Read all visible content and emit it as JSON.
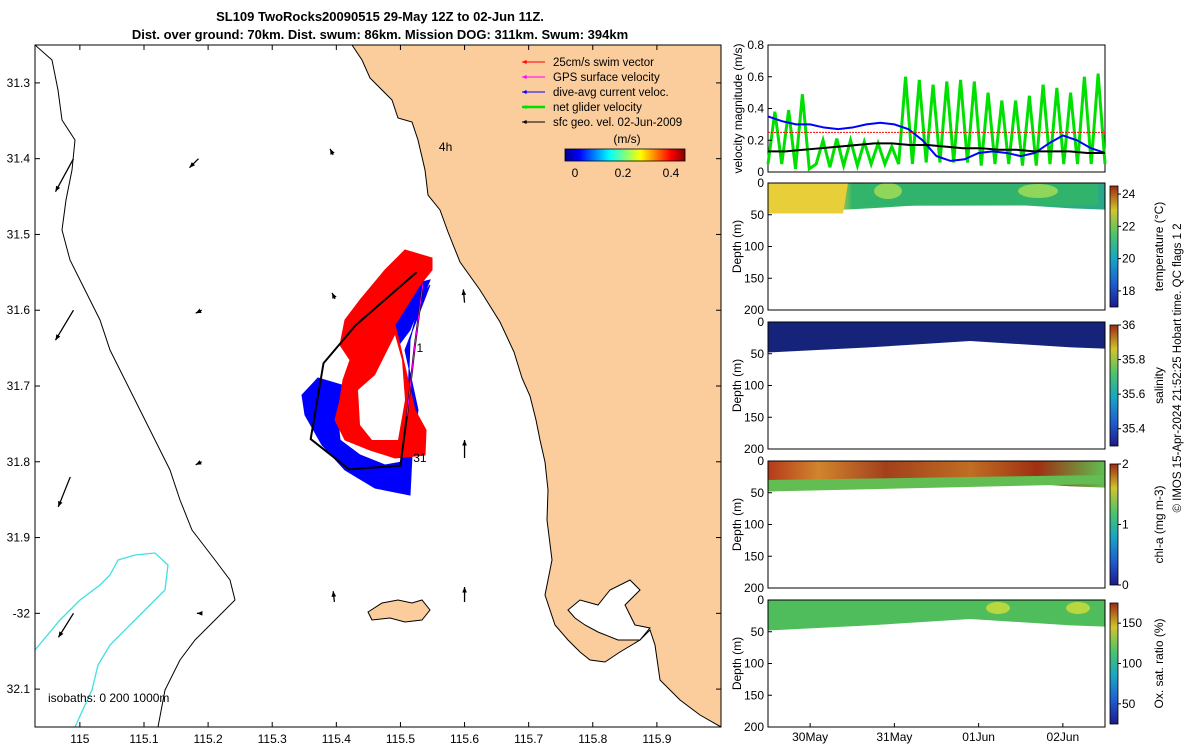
{
  "title_line1": "SL109 TwoRocks20090515 29-May 12Z to 02-Jun 11Z.",
  "title_line2": "Dist. over ground: 70km. Dist. swum: 86km. Mission DOG: 311km. Swum: 394km",
  "copyright": "© IMOS 15-Apr-2024 21:52:25 Hobart time. QC flags 1  2",
  "colors": {
    "land": "#fbcc9c",
    "coast_line": "#000000",
    "isobath": "#40e0e0",
    "swim": "#ff0000",
    "gps": "#ff00ff",
    "current": "#0000ff",
    "net": "#00e000",
    "geo": "#000000"
  },
  "chart_data": [
    {
      "type": "map",
      "xlim": [
        114.93,
        116.0
      ],
      "ylim": [
        -32.15,
        -31.25
      ],
      "x_ticks": [
        115,
        115.1,
        115.2,
        115.3,
        115.4,
        115.5,
        115.6,
        115.7,
        115.8,
        115.9
      ],
      "x_tick_labels": [
        "115",
        "115.1",
        "115.2",
        "115.3",
        "115.4",
        "115.5",
        "115.6",
        "115.7",
        "115.8",
        "115.9"
      ],
      "y_ticks": [
        -31.3,
        -31.4,
        -31.5,
        -31.6,
        -31.7,
        -31.8,
        -31.9,
        -32,
        -32.1
      ],
      "y_tick_labels": [
        "31.3",
        "31.4",
        "31.5",
        "31.6",
        "31.7",
        "31.8",
        "31.9",
        "-32",
        "32.1"
      ],
      "legend": {
        "placement": "top-right",
        "items": [
          {
            "label": "25cm/s swim vector",
            "color_key": "swim"
          },
          {
            "label": "GPS surface velocity",
            "color_key": "gps"
          },
          {
            "label": "dive-avg current veloc.",
            "color_key": "current"
          },
          {
            "label": "net glider velocity",
            "color_key": "net"
          },
          {
            "label": "sfc geo. vel. 02-Jun-2009",
            "color_key": "geo"
          }
        ]
      },
      "colorbar": {
        "title": "(m/s)",
        "ticks": [
          0,
          0.2,
          0.4
        ],
        "tick_labels": [
          "0",
          "0.2",
          "0.4"
        ],
        "range": [
          0,
          0.5
        ],
        "colormap": "jet"
      },
      "annotations": [
        {
          "text": "4h",
          "lon": 115.56,
          "lat": -31.39
        },
        {
          "text": "1",
          "lon": 115.525,
          "lat": -31.655
        },
        {
          "text": "31",
          "lon": 115.52,
          "lat": -31.8
        }
      ],
      "isobath_label": "isobaths: 0   200   1000m",
      "track": [
        [
          115.525,
          -31.55
        ],
        [
          115.43,
          -31.62
        ],
        [
          115.38,
          -31.67
        ],
        [
          115.36,
          -31.77
        ],
        [
          115.42,
          -31.81
        ],
        [
          115.5,
          -31.805
        ],
        [
          115.51,
          -31.74
        ],
        [
          115.522,
          -31.65
        ],
        [
          115.535,
          -31.565
        ]
      ],
      "geo_vectors": [
        {
          "lon": 114.99,
          "lat": -31.4,
          "u": -0.3,
          "v": -0.55
        },
        {
          "lon": 114.99,
          "lat": -31.6,
          "u": -0.3,
          "v": -0.5
        },
        {
          "lon": 114.985,
          "lat": -31.82,
          "u": -0.2,
          "v": -0.5
        },
        {
          "lon": 114.99,
          "lat": -32.0,
          "u": -0.25,
          "v": -0.4
        },
        {
          "lon": 115.185,
          "lat": -31.4,
          "u": -0.15,
          "v": -0.15
        },
        {
          "lon": 115.19,
          "lat": -31.6,
          "u": -0.1,
          "v": -0.05
        },
        {
          "lon": 115.19,
          "lat": -31.8,
          "u": -0.1,
          "v": -0.05
        },
        {
          "lon": 115.19,
          "lat": -32.0,
          "u": -0.08,
          "v": 0.0
        },
        {
          "lon": 115.395,
          "lat": -31.395,
          "u": -0.05,
          "v": 0.1
        },
        {
          "lon": 115.398,
          "lat": -31.585,
          "u": -0.05,
          "v": 0.1
        },
        {
          "lon": 115.397,
          "lat": -31.985,
          "u": -0.02,
          "v": 0.18
        },
        {
          "lon": 115.6,
          "lat": -31.59,
          "u": -0.02,
          "v": 0.22
        },
        {
          "lon": 115.6,
          "lat": -31.795,
          "u": 0.0,
          "v": 0.3
        },
        {
          "lon": 115.6,
          "lat": -31.985,
          "u": 0.0,
          "v": 0.25
        }
      ]
    },
    {
      "type": "line",
      "ylabel": "velocity magnitude (m/s)",
      "ylim": [
        0,
        0.8
      ],
      "y_ticks": [
        0,
        0.2,
        0.4,
        0.6,
        0.8
      ],
      "x_tick_labels": [],
      "series": [
        {
          "color_key": "net",
          "note_values": "oscillating dive cycles",
          "y": [
            0.05,
            0.38,
            0.05,
            0.39,
            0.02,
            0.49,
            0.02,
            0.05,
            0.2,
            0.03,
            0.21,
            0.04,
            0.2,
            0.04,
            0.19,
            0.05,
            0.18,
            0.05,
            0.16,
            0.05,
            0.6,
            0.05,
            0.58,
            0.06,
            0.55,
            0.06,
            0.57,
            0.06,
            0.58,
            0.06,
            0.57,
            0.04,
            0.5,
            0.05,
            0.45,
            0.05,
            0.45,
            0.04,
            0.48,
            0.04,
            0.55,
            0.05,
            0.53,
            0.05,
            0.5,
            0.05,
            0.6,
            0.05,
            0.62,
            0.05
          ]
        },
        {
          "color_key": "current",
          "y": [
            0.35,
            0.32,
            0.3,
            0.3,
            0.28,
            0.27,
            0.28,
            0.3,
            0.31,
            0.3,
            0.27,
            0.2,
            0.1,
            0.07,
            0.08,
            0.12,
            0.13,
            0.12,
            0.1,
            0.12,
            0.18,
            0.23,
            0.2,
            0.15,
            0.12
          ]
        },
        {
          "color_key": "geo",
          "y": [
            0.13,
            0.13,
            0.14,
            0.15,
            0.16,
            0.17,
            0.18,
            0.18,
            0.17,
            0.17,
            0.16,
            0.15,
            0.15,
            0.14,
            0.14,
            0.13,
            0.13,
            0.13,
            0.12,
            0.12
          ]
        },
        {
          "color_key": "swim",
          "y_const": 0.25
        }
      ]
    },
    {
      "type": "heatmap",
      "ylabel": "Depth (m)",
      "clabel": "temperature (°C)",
      "ylim": [
        200,
        0
      ],
      "y_ticks": [
        0,
        50,
        100,
        150,
        200
      ],
      "clim": [
        17,
        24.5
      ],
      "c_ticks": [
        18,
        20,
        22,
        24
      ],
      "c_tick_labels": [
        "18",
        "20",
        "22",
        "24"
      ],
      "x_tick_labels": []
    },
    {
      "type": "heatmap",
      "ylabel": "Depth (m)",
      "clabel": "salinity",
      "ylim": [
        200,
        0
      ],
      "y_ticks": [
        0,
        50,
        100,
        150,
        200
      ],
      "clim": [
        35.3,
        36
      ],
      "c_ticks": [
        35.4,
        35.6,
        35.8,
        36
      ],
      "c_tick_labels": [
        "35.4",
        "35.6",
        "35.8",
        "36"
      ],
      "x_tick_labels": []
    },
    {
      "type": "heatmap",
      "ylabel": "Depth (m)",
      "clabel": "chl-a (mg m-3)",
      "ylim": [
        200,
        0
      ],
      "y_ticks": [
        0,
        50,
        100,
        150,
        200
      ],
      "clim": [
        0,
        2
      ],
      "c_ticks": [
        0,
        1,
        2
      ],
      "c_tick_labels": [
        "0",
        "1",
        "2"
      ],
      "x_tick_labels": []
    },
    {
      "type": "heatmap",
      "ylabel": "Depth (m)",
      "clabel": "Ox. sat. ratio (%)",
      "ylim": [
        200,
        0
      ],
      "y_ticks": [
        0,
        50,
        100,
        150,
        200
      ],
      "clim": [
        25,
        175
      ],
      "c_ticks": [
        50,
        100,
        150
      ],
      "c_tick_labels": [
        "50",
        "100",
        "150"
      ],
      "x_ticks_days": [
        0.5,
        1.5,
        2.5,
        3.5
      ],
      "x_tick_labels": [
        "30May",
        "31May",
        "01Jun",
        "02Jun"
      ],
      "x_range_days": [
        0,
        4
      ]
    }
  ]
}
